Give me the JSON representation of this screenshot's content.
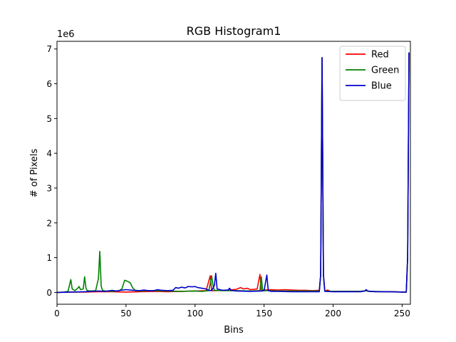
{
  "chart_data": {
    "type": "line",
    "title": "RGB Histogram1",
    "xlabel": "Bins",
    "ylabel": "# of Pixels",
    "y_multiplier_label": "1e6",
    "xlim": [
      0,
      256
    ],
    "ylim": [
      -0.34,
      7.22
    ],
    "y_unit_scale": 1000000,
    "x_ticks": [
      0,
      50,
      100,
      150,
      200,
      250
    ],
    "x_tick_labels": [
      "0",
      "50",
      "100",
      "150",
      "200",
      "250"
    ],
    "y_ticks": [
      0,
      1,
      2,
      3,
      4,
      5,
      6,
      7
    ],
    "y_tick_labels": [
      "0",
      "1",
      "2",
      "3",
      "4",
      "5",
      "6",
      "7"
    ],
    "grid": false,
    "legend_position": "top-right",
    "series": [
      {
        "name": "Red",
        "color": "#ff0000",
        "points": [
          [
            0,
            0
          ],
          [
            10,
            0.01
          ],
          [
            20,
            0.01
          ],
          [
            30,
            0.02
          ],
          [
            40,
            0.02
          ],
          [
            50,
            0.01
          ],
          [
            60,
            0.02
          ],
          [
            70,
            0.03
          ],
          [
            80,
            0.02
          ],
          [
            90,
            0.03
          ],
          [
            100,
            0.04
          ],
          [
            108,
            0.05
          ],
          [
            111,
            0.48
          ],
          [
            112,
            0.05
          ],
          [
            115,
            0.05
          ],
          [
            120,
            0.06
          ],
          [
            125,
            0.07
          ],
          [
            130,
            0.09
          ],
          [
            133,
            0.14
          ],
          [
            135,
            0.1
          ],
          [
            138,
            0.12
          ],
          [
            140,
            0.08
          ],
          [
            145,
            0.1
          ],
          [
            147,
            0.52
          ],
          [
            148,
            0.06
          ],
          [
            150,
            0.07
          ],
          [
            155,
            0.08
          ],
          [
            160,
            0.07
          ],
          [
            165,
            0.08
          ],
          [
            170,
            0.07
          ],
          [
            175,
            0.06
          ],
          [
            180,
            0.06
          ],
          [
            185,
            0.05
          ],
          [
            190,
            0.06
          ],
          [
            191,
            0.5
          ],
          [
            192,
            6.75
          ],
          [
            193,
            0.5
          ],
          [
            194,
            0.04
          ],
          [
            196,
            0.07
          ],
          [
            198,
            0.03
          ],
          [
            205,
            0.03
          ],
          [
            210,
            0.03
          ],
          [
            220,
            0.03
          ],
          [
            224,
            0.05
          ],
          [
            226,
            0.03
          ],
          [
            235,
            0.02
          ],
          [
            245,
            0.02
          ],
          [
            250,
            0.01
          ],
          [
            253,
            0.01
          ],
          [
            254,
            1
          ],
          [
            255,
            6.9
          ]
        ]
      },
      {
        "name": "Green",
        "color": "#008000",
        "points": [
          [
            0,
            0
          ],
          [
            5,
            0.01
          ],
          [
            8,
            0.03
          ],
          [
            10,
            0.37
          ],
          [
            11,
            0.1
          ],
          [
            13,
            0.05
          ],
          [
            15,
            0.12
          ],
          [
            16,
            0.17
          ],
          [
            17,
            0.08
          ],
          [
            19,
            0.1
          ],
          [
            20,
            0.45
          ],
          [
            21,
            0.12
          ],
          [
            22,
            0.05
          ],
          [
            25,
            0.04
          ],
          [
            28,
            0.05
          ],
          [
            30,
            0.4
          ],
          [
            31,
            1.18
          ],
          [
            32,
            0.18
          ],
          [
            33,
            0.06
          ],
          [
            35,
            0.04
          ],
          [
            40,
            0.03
          ],
          [
            45,
            0.05
          ],
          [
            47,
            0.1
          ],
          [
            49,
            0.35
          ],
          [
            51,
            0.32
          ],
          [
            53,
            0.28
          ],
          [
            55,
            0.12
          ],
          [
            57,
            0.05
          ],
          [
            60,
            0.04
          ],
          [
            65,
            0.05
          ],
          [
            70,
            0.05
          ],
          [
            80,
            0.04
          ],
          [
            90,
            0.03
          ],
          [
            100,
            0.04
          ],
          [
            105,
            0.03
          ],
          [
            110,
            0.05
          ],
          [
            112,
            0.48
          ],
          [
            113,
            0.2
          ],
          [
            114,
            0.06
          ],
          [
            120,
            0.05
          ],
          [
            130,
            0.05
          ],
          [
            140,
            0.04
          ],
          [
            147,
            0.05
          ],
          [
            148,
            0.45
          ],
          [
            149,
            0.05
          ],
          [
            152,
            0.05
          ],
          [
            160,
            0.04
          ],
          [
            180,
            0.04
          ],
          [
            190,
            0.04
          ],
          [
            191,
            0.5
          ],
          [
            192,
            6.75
          ],
          [
            193,
            0.5
          ],
          [
            194,
            0.04
          ],
          [
            200,
            0.03
          ],
          [
            210,
            0.03
          ],
          [
            220,
            0.03
          ],
          [
            224,
            0.05
          ],
          [
            226,
            0.03
          ],
          [
            240,
            0.02
          ],
          [
            250,
            0.01
          ],
          [
            253,
            0.01
          ],
          [
            254,
            1
          ],
          [
            255,
            6.9
          ]
        ]
      },
      {
        "name": "Blue",
        "color": "#0000cd",
        "points": [
          [
            0,
            0
          ],
          [
            10,
            0.01
          ],
          [
            20,
            0.02
          ],
          [
            25,
            0.03
          ],
          [
            30,
            0.04
          ],
          [
            35,
            0.03
          ],
          [
            40,
            0.06
          ],
          [
            43,
            0.04
          ],
          [
            46,
            0.06
          ],
          [
            50,
            0.08
          ],
          [
            55,
            0.06
          ],
          [
            60,
            0.05
          ],
          [
            63,
            0.07
          ],
          [
            66,
            0.05
          ],
          [
            70,
            0.05
          ],
          [
            73,
            0.08
          ],
          [
            76,
            0.06
          ],
          [
            80,
            0.05
          ],
          [
            84,
            0.06
          ],
          [
            86,
            0.14
          ],
          [
            88,
            0.12
          ],
          [
            90,
            0.15
          ],
          [
            93,
            0.13
          ],
          [
            95,
            0.17
          ],
          [
            98,
            0.16
          ],
          [
            100,
            0.17
          ],
          [
            102,
            0.14
          ],
          [
            105,
            0.12
          ],
          [
            108,
            0.1
          ],
          [
            110,
            0.06
          ],
          [
            112,
            0.05
          ],
          [
            114,
            0.2
          ],
          [
            115,
            0.55
          ],
          [
            116,
            0.1
          ],
          [
            120,
            0.06
          ],
          [
            124,
            0.07
          ],
          [
            125,
            0.12
          ],
          [
            126,
            0.06
          ],
          [
            130,
            0.04
          ],
          [
            140,
            0.03
          ],
          [
            148,
            0.04
          ],
          [
            150,
            0.05
          ],
          [
            152,
            0.5
          ],
          [
            153,
            0.06
          ],
          [
            155,
            0.03
          ],
          [
            160,
            0.03
          ],
          [
            170,
            0.02
          ],
          [
            180,
            0.02
          ],
          [
            190,
            0.02
          ],
          [
            191,
            0.5
          ],
          [
            192,
            6.75
          ],
          [
            193,
            0.5
          ],
          [
            194,
            0.03
          ],
          [
            200,
            0.02
          ],
          [
            210,
            0.02
          ],
          [
            220,
            0.02
          ],
          [
            223,
            0.04
          ],
          [
            224,
            0.08
          ],
          [
            225,
            0.04
          ],
          [
            230,
            0.02
          ],
          [
            240,
            0.02
          ],
          [
            250,
            0.01
          ],
          [
            253,
            0.01
          ],
          [
            254,
            1
          ],
          [
            255,
            6.9
          ]
        ]
      }
    ]
  }
}
